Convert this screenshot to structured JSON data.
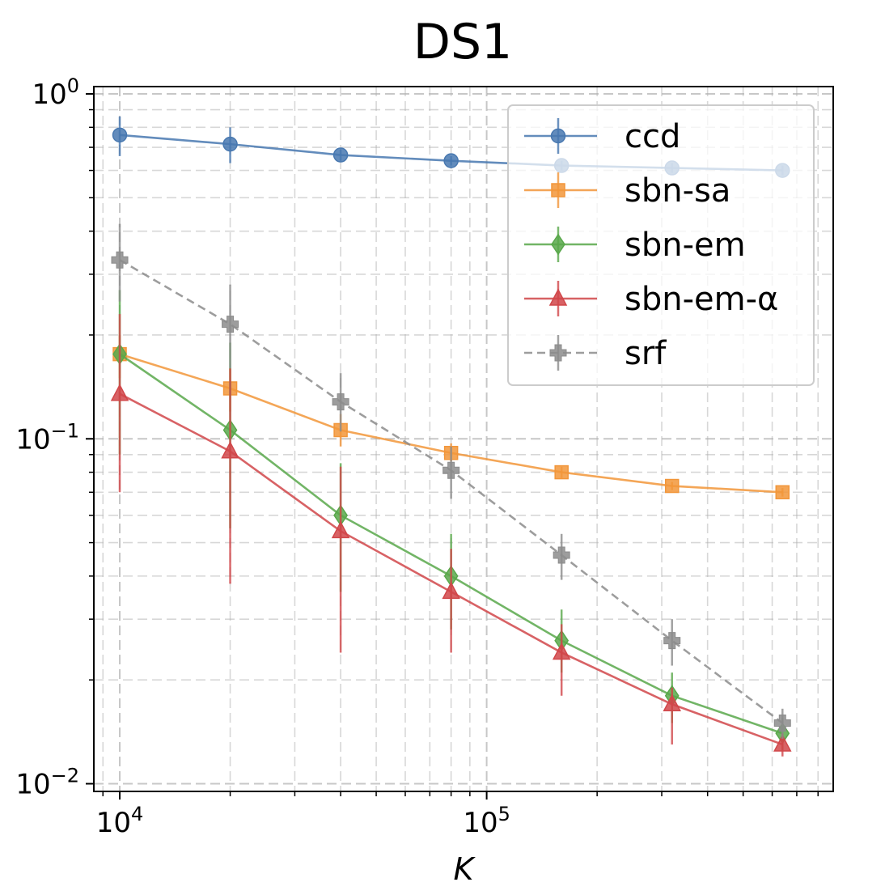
{
  "chart_data": {
    "type": "line",
    "title": "DS1",
    "xlabel": "K",
    "ylabel": "",
    "xscale": "log",
    "yscale": "log",
    "xlim": [
      8500,
      880000
    ],
    "ylim": [
      0.0095,
      1.05
    ],
    "grid": true,
    "legend_position": "top-right",
    "x_ticks": [
      {
        "value": 10000,
        "base": "10",
        "exp": "4"
      },
      {
        "value": 100000,
        "base": "10",
        "exp": "5"
      }
    ],
    "y_ticks": [
      {
        "value": 1,
        "base": "10",
        "exp": "0"
      },
      {
        "value": 0.1,
        "base": "10",
        "exp": "−1"
      },
      {
        "value": 0.01,
        "base": "10",
        "exp": "−2"
      }
    ],
    "x": [
      10000,
      20000,
      40000,
      80000,
      160000,
      320000,
      640000
    ],
    "series": [
      {
        "name": "ccd",
        "color": "#4878b0",
        "marker": "circle",
        "dashed": false,
        "values": [
          0.76,
          0.715,
          0.665,
          0.64,
          0.62,
          0.61,
          0.6
        ],
        "err_low": [
          0.66,
          0.63,
          0.64,
          0.62,
          0.6,
          0.59,
          0.58
        ],
        "err_high": [
          0.86,
          0.8,
          0.69,
          0.66,
          0.64,
          0.63,
          0.62
        ]
      },
      {
        "name": "sbn-sa",
        "color": "#f2963a",
        "marker": "square",
        "dashed": false,
        "values": [
          0.176,
          0.14,
          0.106,
          0.091,
          0.08,
          0.073,
          0.07
        ],
        "err_low": [
          0.15,
          0.12,
          0.095,
          0.086,
          0.077,
          0.071,
          0.068
        ],
        "err_high": [
          0.2,
          0.16,
          0.118,
          0.097,
          0.083,
          0.075,
          0.072
        ]
      },
      {
        "name": "sbn-em",
        "color": "#59a84b",
        "marker": "diamond",
        "dashed": false,
        "values": [
          0.176,
          0.106,
          0.06,
          0.04,
          0.026,
          0.018,
          0.014
        ],
        "err_low": [
          0.09,
          0.055,
          0.036,
          0.028,
          0.021,
          0.015,
          0.0125
        ],
        "err_high": [
          0.27,
          0.19,
          0.085,
          0.053,
          0.032,
          0.021,
          0.0155
        ]
      },
      {
        "name": "sbn-em-α",
        "color": "#d1474a",
        "marker": "triangle",
        "dashed": false,
        "values": [
          0.135,
          0.092,
          0.054,
          0.036,
          0.024,
          0.017,
          0.013
        ],
        "err_low": [
          0.07,
          0.038,
          0.024,
          0.024,
          0.018,
          0.013,
          0.012
        ],
        "err_high": [
          0.23,
          0.16,
          0.083,
          0.048,
          0.029,
          0.019,
          0.014
        ]
      },
      {
        "name": "srf",
        "color": "#8c8c8c",
        "marker": "plus",
        "dashed": true,
        "values": [
          0.33,
          0.215,
          0.128,
          0.081,
          0.046,
          0.026,
          0.015
        ],
        "err_low": [
          0.25,
          0.16,
          0.105,
          0.067,
          0.039,
          0.022,
          0.0135
        ],
        "err_high": [
          0.42,
          0.28,
          0.155,
          0.095,
          0.053,
          0.03,
          0.0165
        ]
      }
    ]
  }
}
